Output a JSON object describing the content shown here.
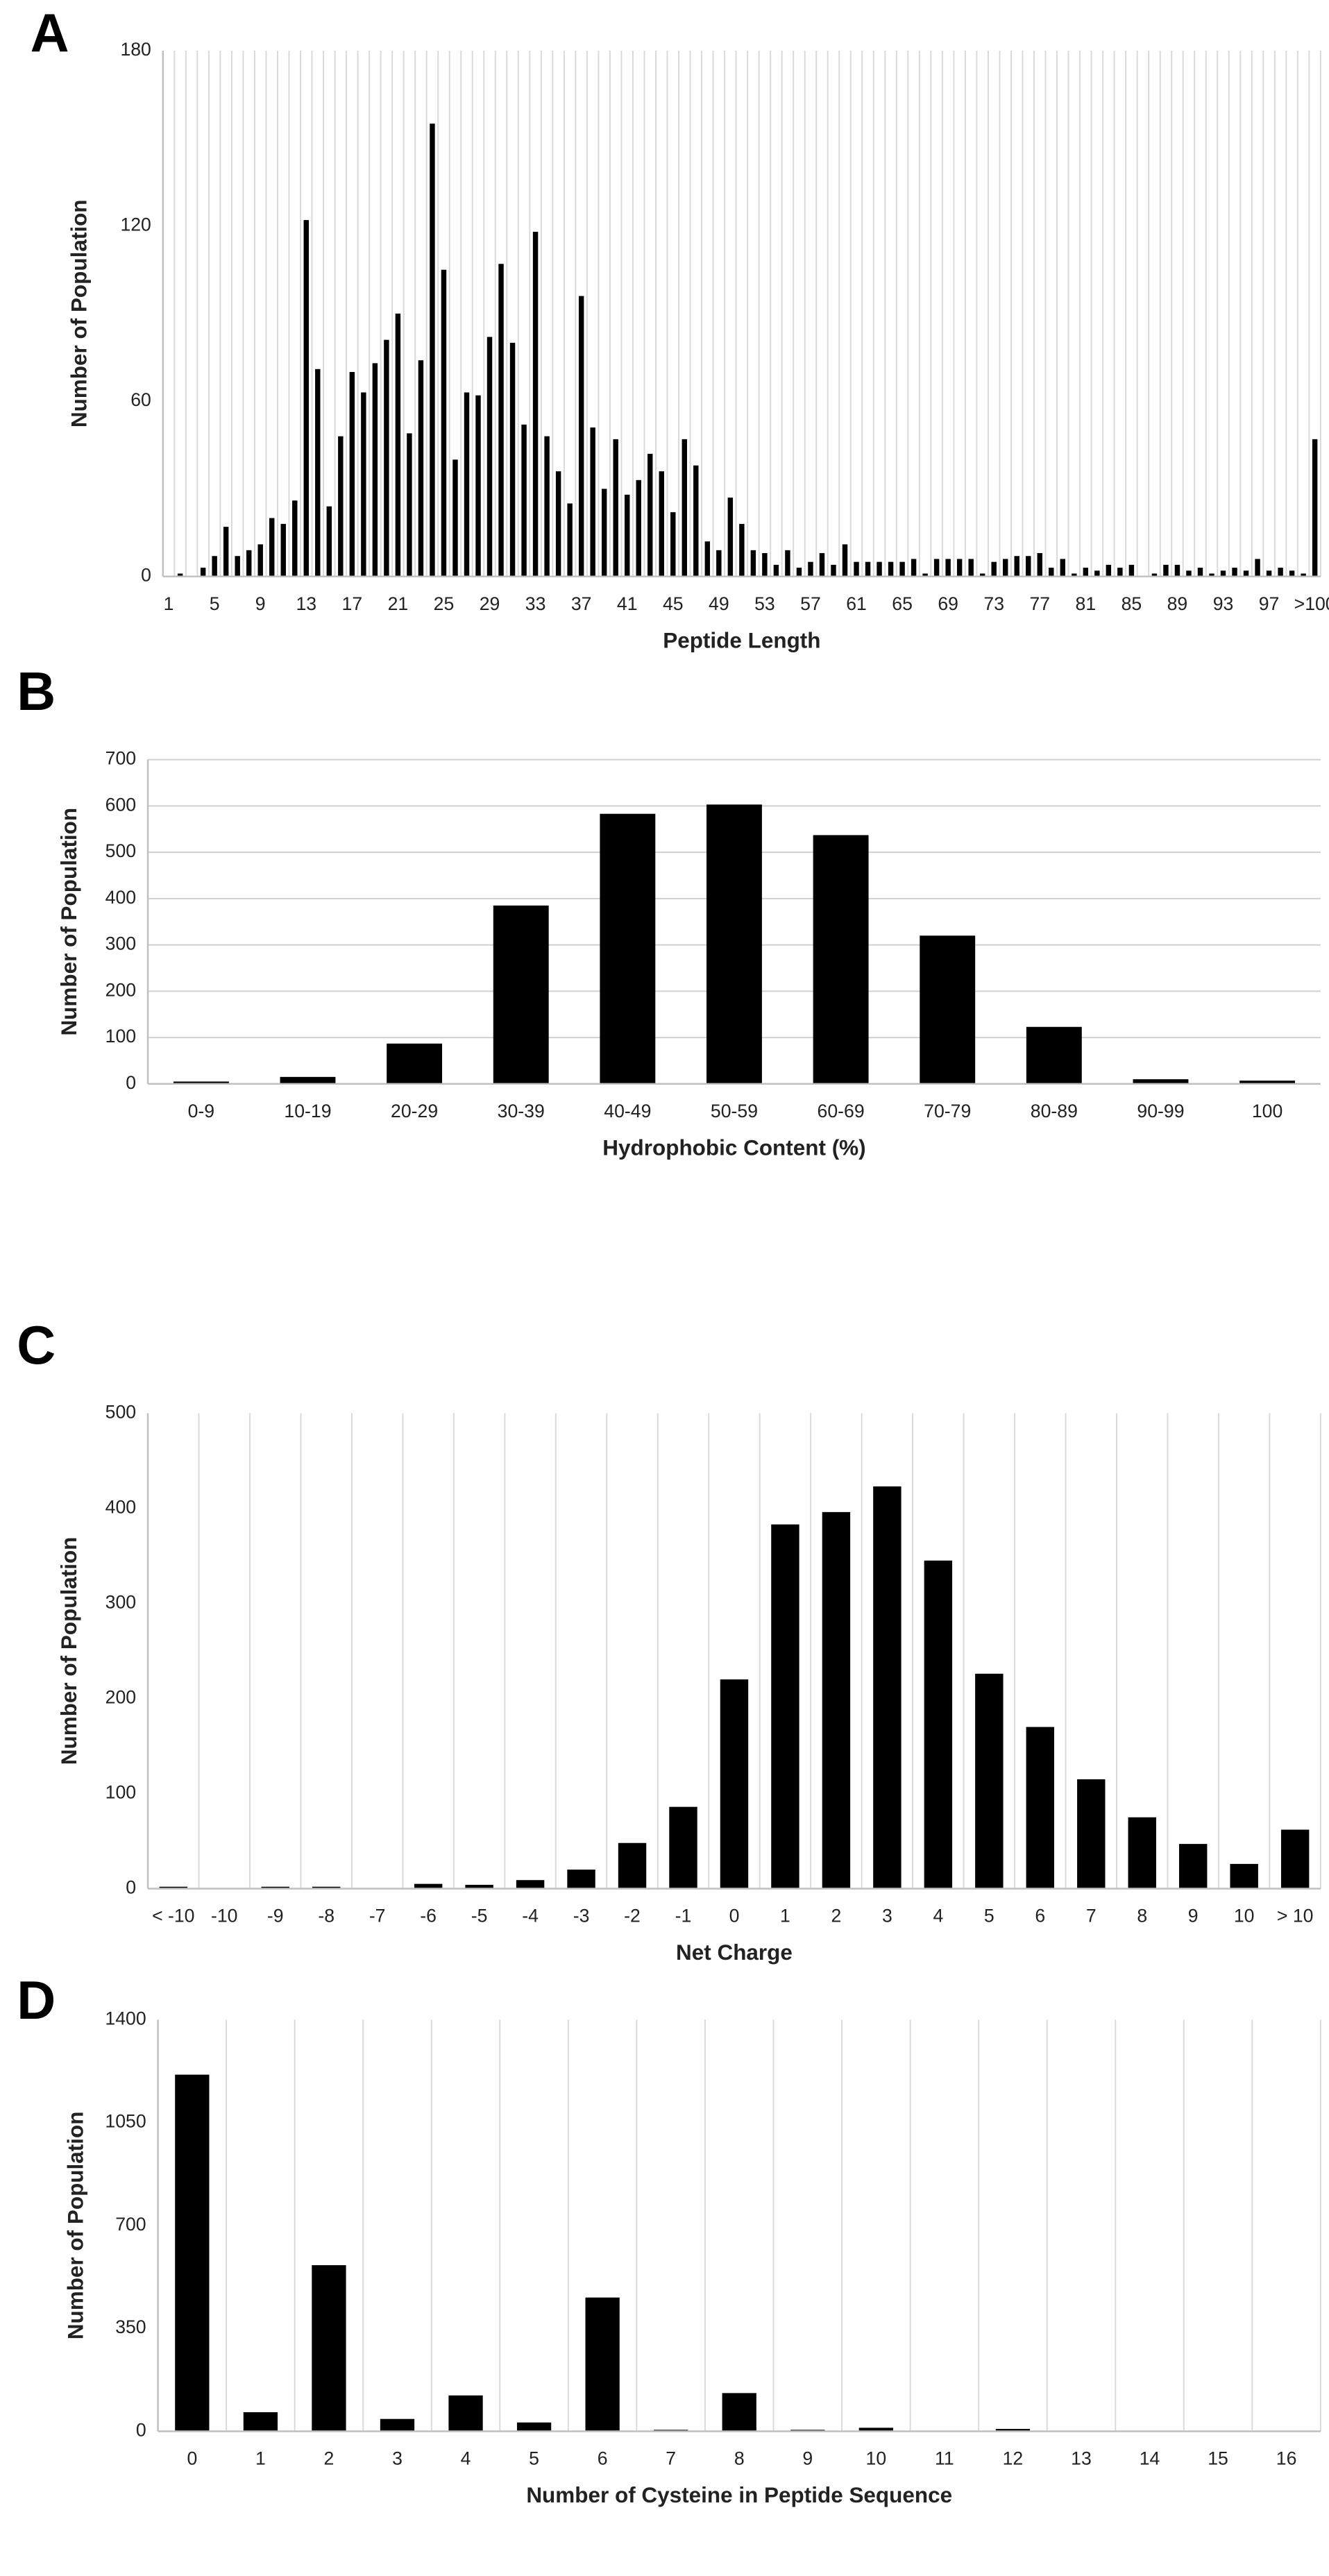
{
  "chart_data": [
    {
      "type": "bar",
      "panel": "A",
      "xlabel": "Peptide Length",
      "ylabel": "Number of Population",
      "categories": [
        "1",
        null,
        null,
        null,
        "5",
        null,
        null,
        null,
        "9",
        null,
        null,
        null,
        "13",
        null,
        null,
        null,
        "17",
        null,
        null,
        null,
        "21",
        null,
        null,
        null,
        "25",
        null,
        null,
        null,
        "29",
        null,
        null,
        null,
        "33",
        null,
        null,
        null,
        "37",
        null,
        null,
        null,
        "41",
        null,
        null,
        null,
        "45",
        null,
        null,
        null,
        "49",
        null,
        null,
        null,
        "53",
        null,
        null,
        null,
        "57",
        null,
        null,
        null,
        "61",
        null,
        null,
        null,
        "65",
        null,
        null,
        null,
        "69",
        null,
        null,
        null,
        "73",
        null,
        null,
        null,
        "77",
        null,
        null,
        null,
        "81",
        null,
        null,
        null,
        "85",
        null,
        null,
        null,
        "89",
        null,
        null,
        null,
        "93",
        null,
        null,
        null,
        "97",
        null,
        null,
        null,
        ">100"
      ],
      "values": [
        0,
        1,
        0,
        3,
        7,
        17,
        7,
        9,
        11,
        20,
        18,
        26,
        122,
        71,
        24,
        48,
        70,
        63,
        73,
        81,
        90,
        49,
        74,
        155,
        105,
        40,
        63,
        62,
        82,
        107,
        80,
        52,
        118,
        48,
        36,
        25,
        96,
        51,
        30,
        47,
        28,
        33,
        42,
        36,
        22,
        47,
        38,
        12,
        9,
        27,
        18,
        9,
        8,
        4,
        9,
        3,
        5,
        8,
        4,
        11,
        5,
        5,
        5,
        5,
        5,
        6,
        1,
        6,
        6,
        6,
        6,
        1,
        5,
        6,
        7,
        7,
        8,
        3,
        6,
        1,
        3,
        2,
        4,
        3,
        4,
        0,
        1,
        4,
        4,
        2,
        3,
        1,
        2,
        3,
        2,
        6,
        2,
        3,
        2,
        1,
        47
      ],
      "color": "#000000",
      "ylim": [
        0,
        180
      ],
      "yticks": [
        0,
        60,
        120,
        180
      ],
      "grid": "vertical"
    },
    {
      "type": "bar",
      "panel": "B",
      "xlabel": "Hydrophobic Content (%)",
      "ylabel": "Number of Population",
      "categories": [
        "0-9",
        "10-19",
        "20-29",
        "30-39",
        "40-49",
        "50-59",
        "60-69",
        "70-79",
        "80-89",
        "90-99",
        "100"
      ],
      "values": [
        5,
        15,
        87,
        385,
        583,
        603,
        537,
        320,
        123,
        10,
        7
      ],
      "color": "#000000",
      "ylim": [
        0,
        700
      ],
      "yticks": [
        0,
        100,
        200,
        300,
        400,
        500,
        600,
        700
      ],
      "grid": "horizontal"
    },
    {
      "type": "bar",
      "panel": "C",
      "xlabel": "Net Charge",
      "ylabel": "Number of Population",
      "categories": [
        "< -10",
        "-10",
        "-9",
        "-8",
        "-7",
        "-6",
        "-5",
        "-4",
        "-3",
        "-2",
        "-1",
        "0",
        "1",
        "2",
        "3",
        "4",
        "5",
        "6",
        "7",
        "8",
        "9",
        "10",
        "> 10"
      ],
      "values": [
        2,
        0,
        2,
        2,
        0,
        5,
        4,
        9,
        20,
        48,
        86,
        220,
        383,
        396,
        423,
        345,
        226,
        170,
        115,
        75,
        47,
        26,
        62
      ],
      "color": "#000000",
      "ylim": [
        0,
        500
      ],
      "yticks": [
        0,
        100,
        200,
        300,
        400,
        500
      ],
      "grid": "vertical"
    },
    {
      "type": "bar",
      "panel": "D",
      "xlabel": "Number of Cysteine in Peptide Sequence",
      "ylabel": "Number of Population",
      "categories": [
        "0",
        "1",
        "2",
        "3",
        "4",
        "5",
        "6",
        "7",
        "8",
        "9",
        "10",
        "11",
        "12",
        "13",
        "14",
        "15",
        "16"
      ],
      "values": [
        1213,
        65,
        565,
        42,
        122,
        30,
        455,
        5,
        130,
        5,
        12,
        0,
        8,
        0,
        0,
        0,
        0
      ],
      "color": "#000000",
      "ylim": [
        0,
        1400
      ],
      "yticks": [
        0,
        350,
        700,
        1050,
        1400
      ],
      "grid": "vertical"
    }
  ]
}
